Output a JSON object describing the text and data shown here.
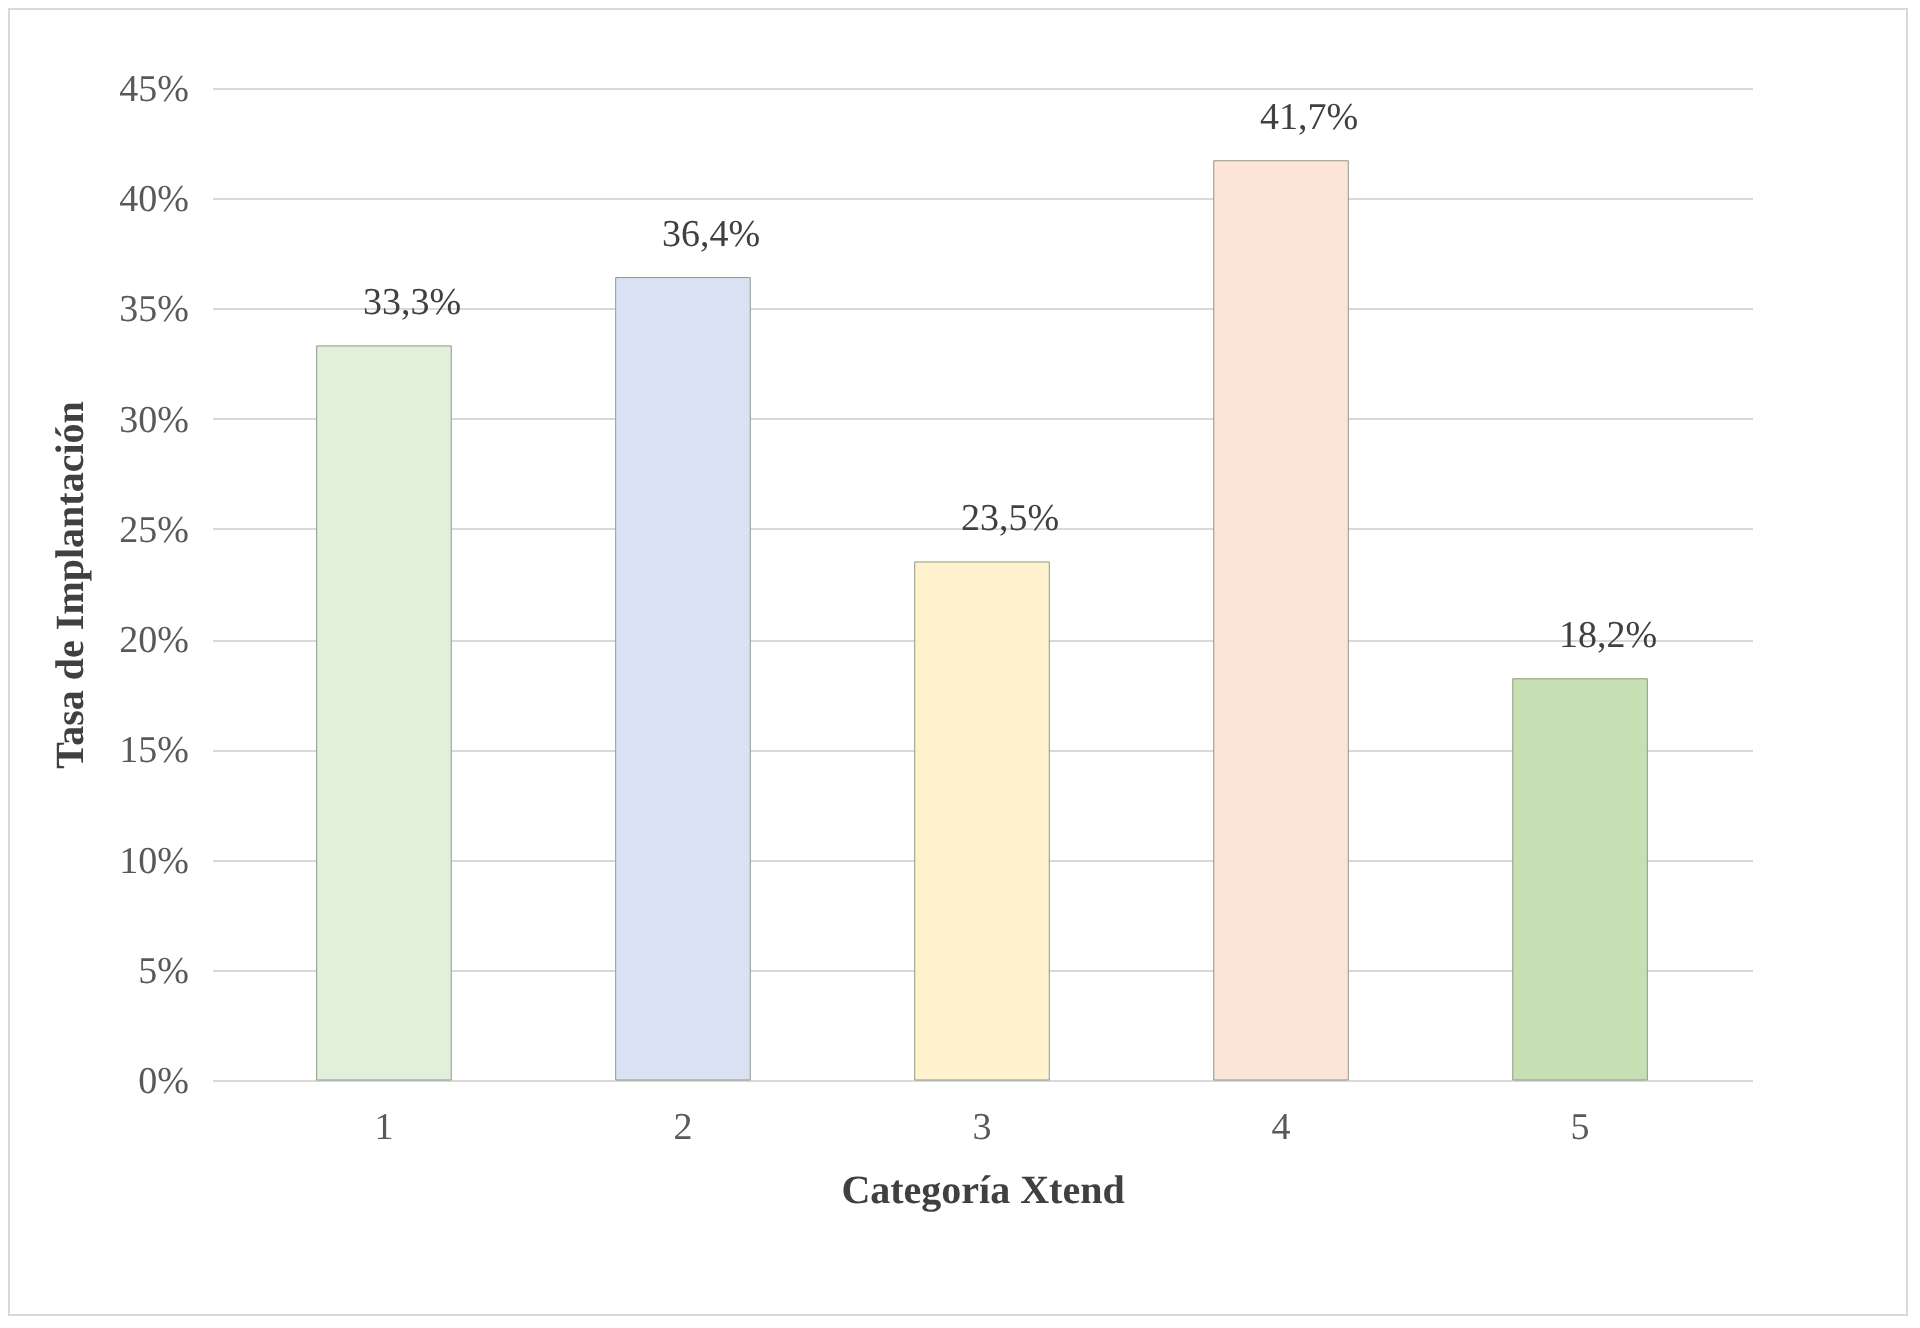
{
  "chart_data": {
    "type": "bar",
    "xlabel": "Categoría Xtend",
    "ylabel": "Tasa de Implantación",
    "categories": [
      "1",
      "2",
      "3",
      "4",
      "5"
    ],
    "values": [
      33.3,
      36.4,
      23.5,
      41.7,
      18.2
    ],
    "colors": [
      "#e2efda",
      "#dae1f2",
      "#fff2cc",
      "#fce4d6",
      "#c6e0b4"
    ],
    "value_labels": [
      "33,3%",
      "36,4%",
      "23,5%",
      "41,7%",
      "18,2%"
    ],
    "ylim": [
      0,
      45
    ],
    "yticks": [
      {
        "value": 0,
        "label": "0%"
      },
      {
        "value": 5,
        "label": "5%"
      },
      {
        "value": 10,
        "label": "10%"
      },
      {
        "value": 15,
        "label": "15%"
      },
      {
        "value": 20,
        "label": "20%"
      },
      {
        "value": 25,
        "label": "25%"
      },
      {
        "value": 30,
        "label": "30%"
      },
      {
        "value": 35,
        "label": "35%"
      },
      {
        "value": 40,
        "label": "40%"
      },
      {
        "value": 45,
        "label": "45%"
      }
    ],
    "grid": "y"
  }
}
